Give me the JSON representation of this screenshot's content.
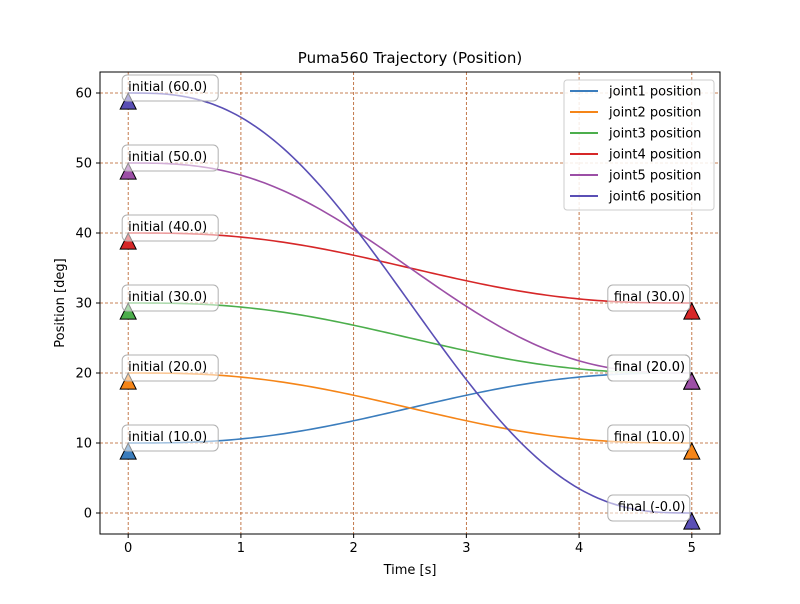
{
  "chart_data": {
    "type": "line",
    "title": "Puma560 Trajectory (Position)",
    "xlabel": "Time [s]",
    "ylabel": "Position [deg]",
    "xlim": [
      -0.25,
      5.25
    ],
    "ylim": [
      -3,
      63
    ],
    "xticks": [
      0,
      1,
      2,
      3,
      4,
      5
    ],
    "yticks": [
      0,
      10,
      20,
      30,
      40,
      50,
      60
    ],
    "grid": true,
    "grid_color": "#b5581f",
    "legend_position": "top-right",
    "duration": 5,
    "series": [
      {
        "name": "joint1 position",
        "color": "#3b7dbd",
        "start": 10,
        "end": 20,
        "start_label": "initial (10.0)",
        "end_label": "final (20.0)"
      },
      {
        "name": "joint2 position",
        "color": "#f58518",
        "start": 20,
        "end": 10,
        "start_label": "initial (20.0)",
        "end_label": "final (10.0)"
      },
      {
        "name": "joint3 position",
        "color": "#4cae4c",
        "start": 30,
        "end": 20,
        "start_label": "initial (30.0)",
        "end_label": "final (20.0)"
      },
      {
        "name": "joint4 position",
        "color": "#d62728",
        "start": 40,
        "end": 30,
        "start_label": "initial (40.0)",
        "end_label": "final (30.0)"
      },
      {
        "name": "joint5 position",
        "color": "#9c4fa6",
        "start": 50,
        "end": 20,
        "start_label": "initial (50.0)",
        "end_label": "final (20.0)"
      },
      {
        "name": "joint6 position",
        "color": "#5a4fb5",
        "start": 60,
        "end": 0,
        "start_label": "initial (60.0)",
        "end_label": "final (-0.0)"
      }
    ]
  }
}
